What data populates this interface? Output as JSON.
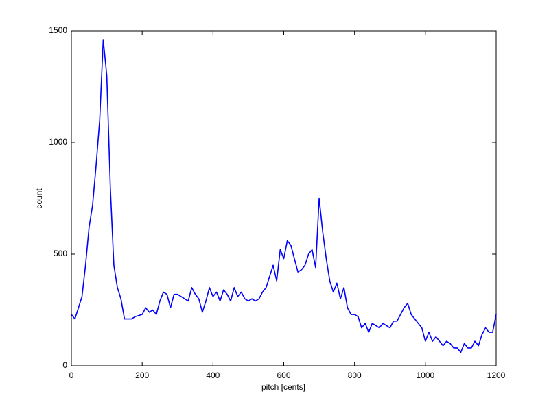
{
  "chart_data": {
    "type": "line",
    "xlabel": "pitch [cents]",
    "ylabel": "count",
    "x": [
      0,
      10,
      20,
      30,
      40,
      50,
      60,
      70,
      80,
      90,
      100,
      110,
      120,
      130,
      140,
      150,
      160,
      170,
      180,
      190,
      200,
      210,
      220,
      230,
      240,
      250,
      260,
      270,
      280,
      290,
      300,
      310,
      320,
      330,
      340,
      350,
      360,
      370,
      380,
      390,
      400,
      410,
      420,
      430,
      440,
      450,
      460,
      470,
      480,
      490,
      500,
      510,
      520,
      530,
      540,
      550,
      560,
      570,
      580,
      590,
      600,
      610,
      620,
      630,
      640,
      650,
      660,
      670,
      680,
      690,
      700,
      710,
      720,
      730,
      740,
      750,
      760,
      770,
      780,
      790,
      800,
      810,
      820,
      830,
      840,
      850,
      860,
      870,
      880,
      890,
      900,
      910,
      920,
      930,
      940,
      950,
      960,
      970,
      980,
      990,
      1000,
      1010,
      1020,
      1030,
      1040,
      1050,
      1060,
      1070,
      1080,
      1090,
      1100,
      1110,
      1120,
      1130,
      1140,
      1150,
      1160,
      1170,
      1180,
      1190,
      1200
    ],
    "values": [
      230,
      210,
      260,
      310,
      450,
      620,
      720,
      900,
      1100,
      1460,
      1300,
      800,
      450,
      350,
      300,
      210,
      210,
      210,
      220,
      225,
      230,
      260,
      240,
      250,
      230,
      290,
      330,
      320,
      260,
      320,
      320,
      310,
      300,
      290,
      350,
      320,
      300,
      240,
      290,
      350,
      310,
      330,
      290,
      340,
      320,
      290,
      350,
      310,
      330,
      300,
      290,
      300,
      290,
      300,
      330,
      350,
      400,
      450,
      380,
      520,
      480,
      560,
      540,
      480,
      420,
      430,
      450,
      500,
      520,
      440,
      750,
      600,
      480,
      380,
      330,
      370,
      300,
      350,
      260,
      230,
      230,
      220,
      170,
      190,
      150,
      190,
      180,
      170,
      190,
      180,
      170,
      200,
      200,
      230,
      260,
      280,
      230,
      210,
      190,
      170,
      110,
      150,
      110,
      130,
      110,
      90,
      110,
      100,
      80,
      80,
      60,
      100,
      80,
      80,
      110,
      90,
      140,
      170,
      150,
      150,
      230
    ],
    "color": "#0000ff",
    "xlim": [
      0,
      1200
    ],
    "xticks": [
      0,
      200,
      400,
      600,
      800,
      1000,
      1200
    ],
    "ylim": [
      0,
      1500
    ],
    "yticks": [
      0,
      500,
      1000,
      1500
    ],
    "grid": false
  }
}
